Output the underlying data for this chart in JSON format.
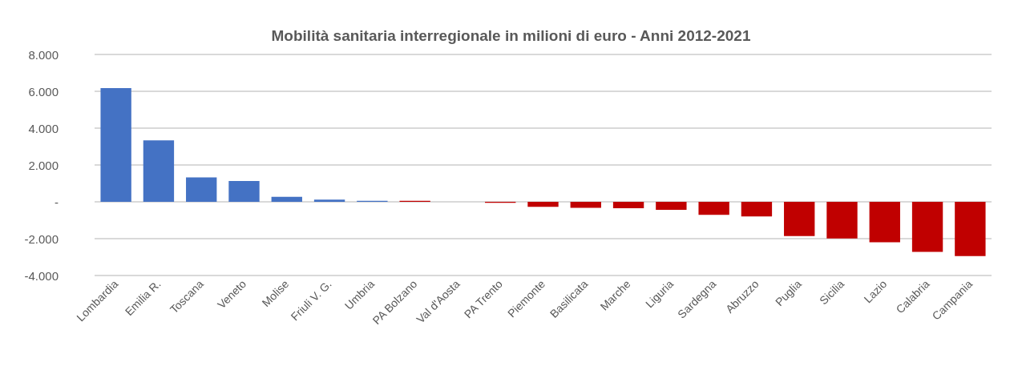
{
  "chart_data": {
    "type": "bar",
    "title": "Mobilità sanitaria interregionale in milioni di euro - Anni 2012-2021",
    "categories": [
      "Lombardia",
      "Emilia R.",
      "Toscana",
      "Veneto",
      "Molise",
      "Friuli V. G.",
      "Umbria",
      "PA Bolzano",
      "Val d'Aosta",
      "PA Trento",
      "Piemonte",
      "Basilicata",
      "Marche",
      "Liguria",
      "Sardegna",
      "Abruzzo",
      "Puglia",
      "Sicilia",
      "Lazio",
      "Calabria",
      "Campania"
    ],
    "values": [
      6170,
      3340,
      1330,
      1130,
      270,
      120,
      50,
      50,
      0,
      -50,
      -270,
      -330,
      -350,
      -440,
      -710,
      -790,
      -1860,
      -1990,
      -2200,
      -2720,
      -2950
    ],
    "colors": [
      "#4472c4",
      "#4472c4",
      "#4472c4",
      "#4472c4",
      "#4472c4",
      "#4472c4",
      "#4472c4",
      "#c00000",
      "#c00000",
      "#c00000",
      "#c00000",
      "#c00000",
      "#c00000",
      "#c00000",
      "#c00000",
      "#c00000",
      "#c00000",
      "#c00000",
      "#c00000",
      "#c00000",
      "#c00000"
    ],
    "ylim": [
      -4000,
      8000
    ],
    "yticks": [
      {
        "value": -4000,
        "label": "-4.000"
      },
      {
        "value": -2000,
        "label": "-2.000"
      },
      {
        "value": 0,
        "label": "-"
      },
      {
        "value": 2000,
        "label": "2.000"
      },
      {
        "value": 4000,
        "label": "4.000"
      },
      {
        "value": 6000,
        "label": "6.000"
      },
      {
        "value": 8000,
        "label": "8.000"
      }
    ],
    "grid": "y"
  }
}
